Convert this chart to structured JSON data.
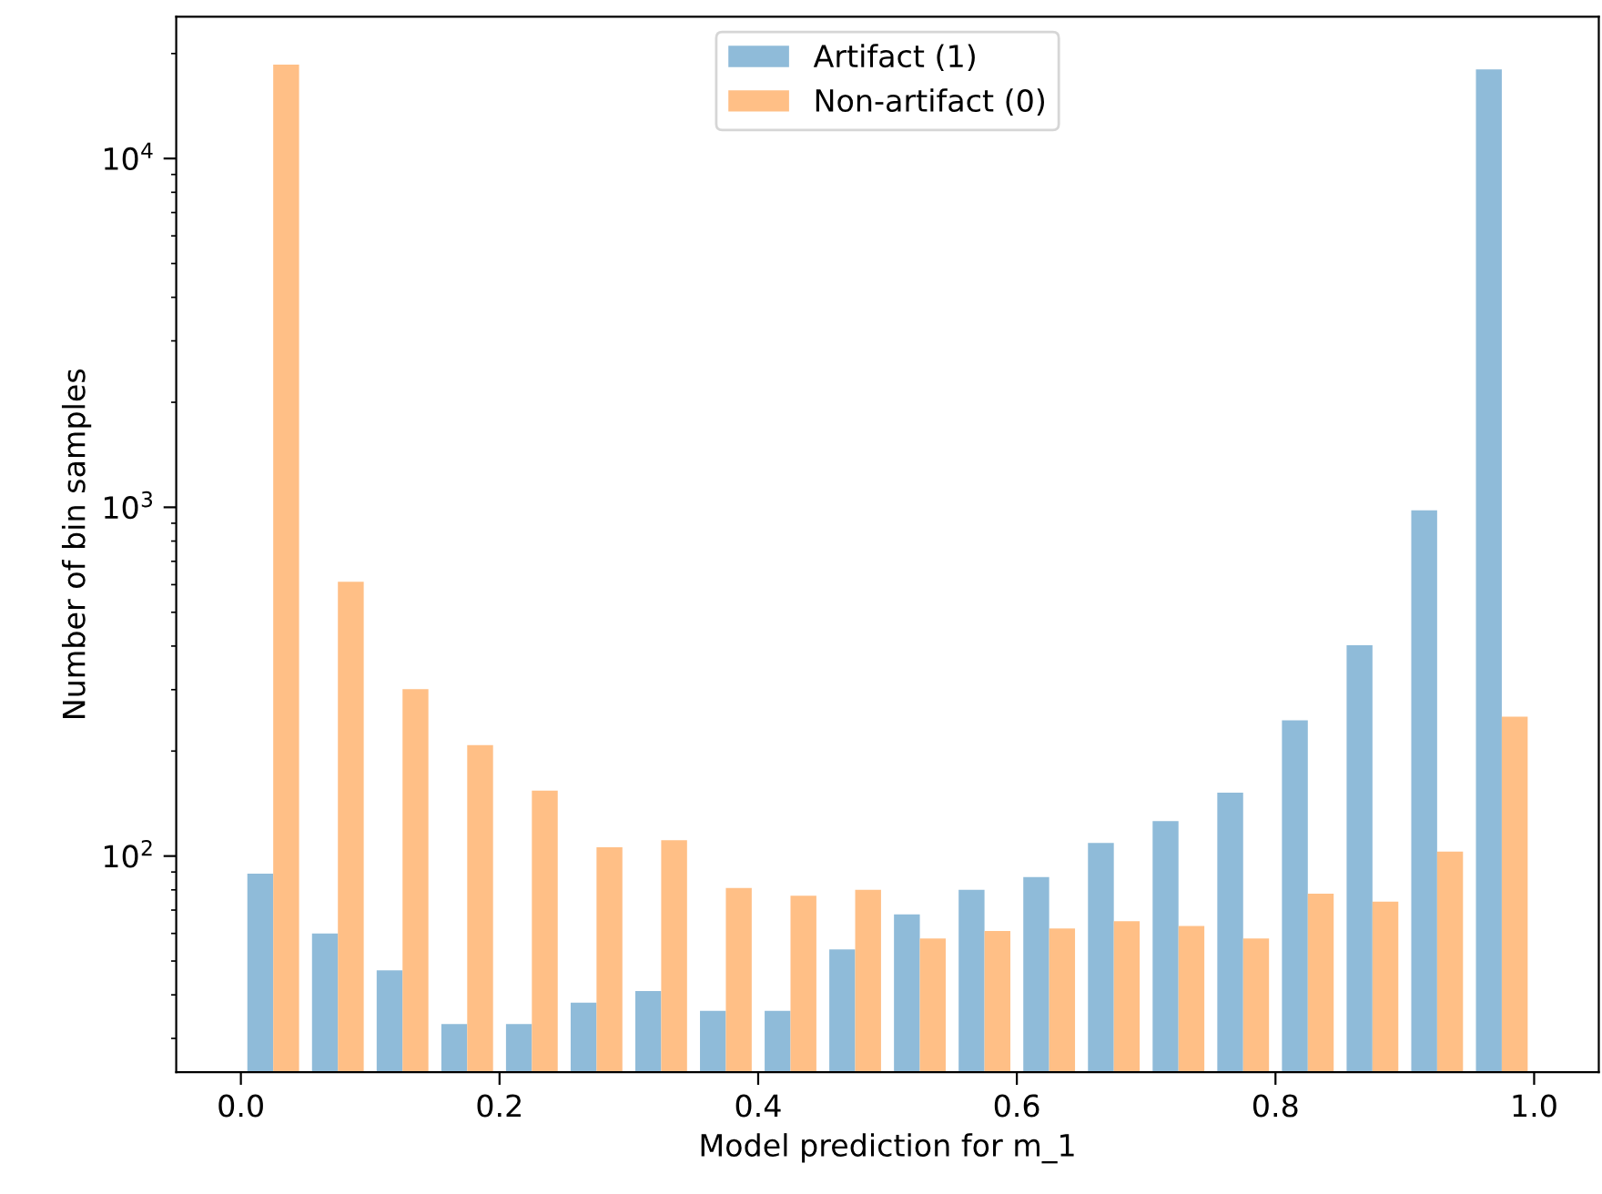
{
  "chart_data": {
    "type": "histogram",
    "xlabel": "Model prediction for m_1",
    "ylabel": "Number of bin samples",
    "bins": [
      0,
      0.05,
      0.1,
      0.15,
      0.2,
      0.25,
      0.3,
      0.35,
      0.4,
      0.45,
      0.5,
      0.55,
      0.6,
      0.65,
      0.7,
      0.75,
      0.8,
      0.85,
      0.9,
      0.95,
      1.0
    ],
    "series": [
      {
        "name": "Artifact (1)",
        "color": "#8fbbd9",
        "values": [
          89,
          60,
          47,
          33,
          33,
          38,
          41,
          36,
          36,
          54,
          68,
          80,
          87,
          109,
          126,
          152,
          245,
          402,
          980,
          18000
        ]
      },
      {
        "name": "Non-artifact (0)",
        "color": "#ffbf86",
        "values": [
          18600,
          612,
          301,
          208,
          154,
          106,
          111,
          81,
          77,
          80,
          58,
          61,
          62,
          65,
          63,
          58,
          78,
          74,
          103,
          251
        ]
      }
    ],
    "log": true,
    "xlim": [
      -0.05,
      1.05
    ],
    "xticks": [
      {
        "value": 0,
        "label": "0.0"
      },
      {
        "value": 0.2,
        "label": "0.2"
      },
      {
        "value": 0.4,
        "label": "0.4"
      },
      {
        "value": 0.6,
        "label": "0.6"
      },
      {
        "value": 0.8,
        "label": "0.8"
      },
      {
        "value": 1,
        "label": "1.0"
      }
    ],
    "ylim": [
      24,
      25500
    ],
    "yticks": [
      {
        "value": 100,
        "label": "10$^{2}$"
      },
      {
        "value": 1000,
        "label": "10$^{3}$"
      },
      {
        "value": 10000,
        "label": "10$^{4}$"
      }
    ],
    "grid": false,
    "legend": "top"
  }
}
